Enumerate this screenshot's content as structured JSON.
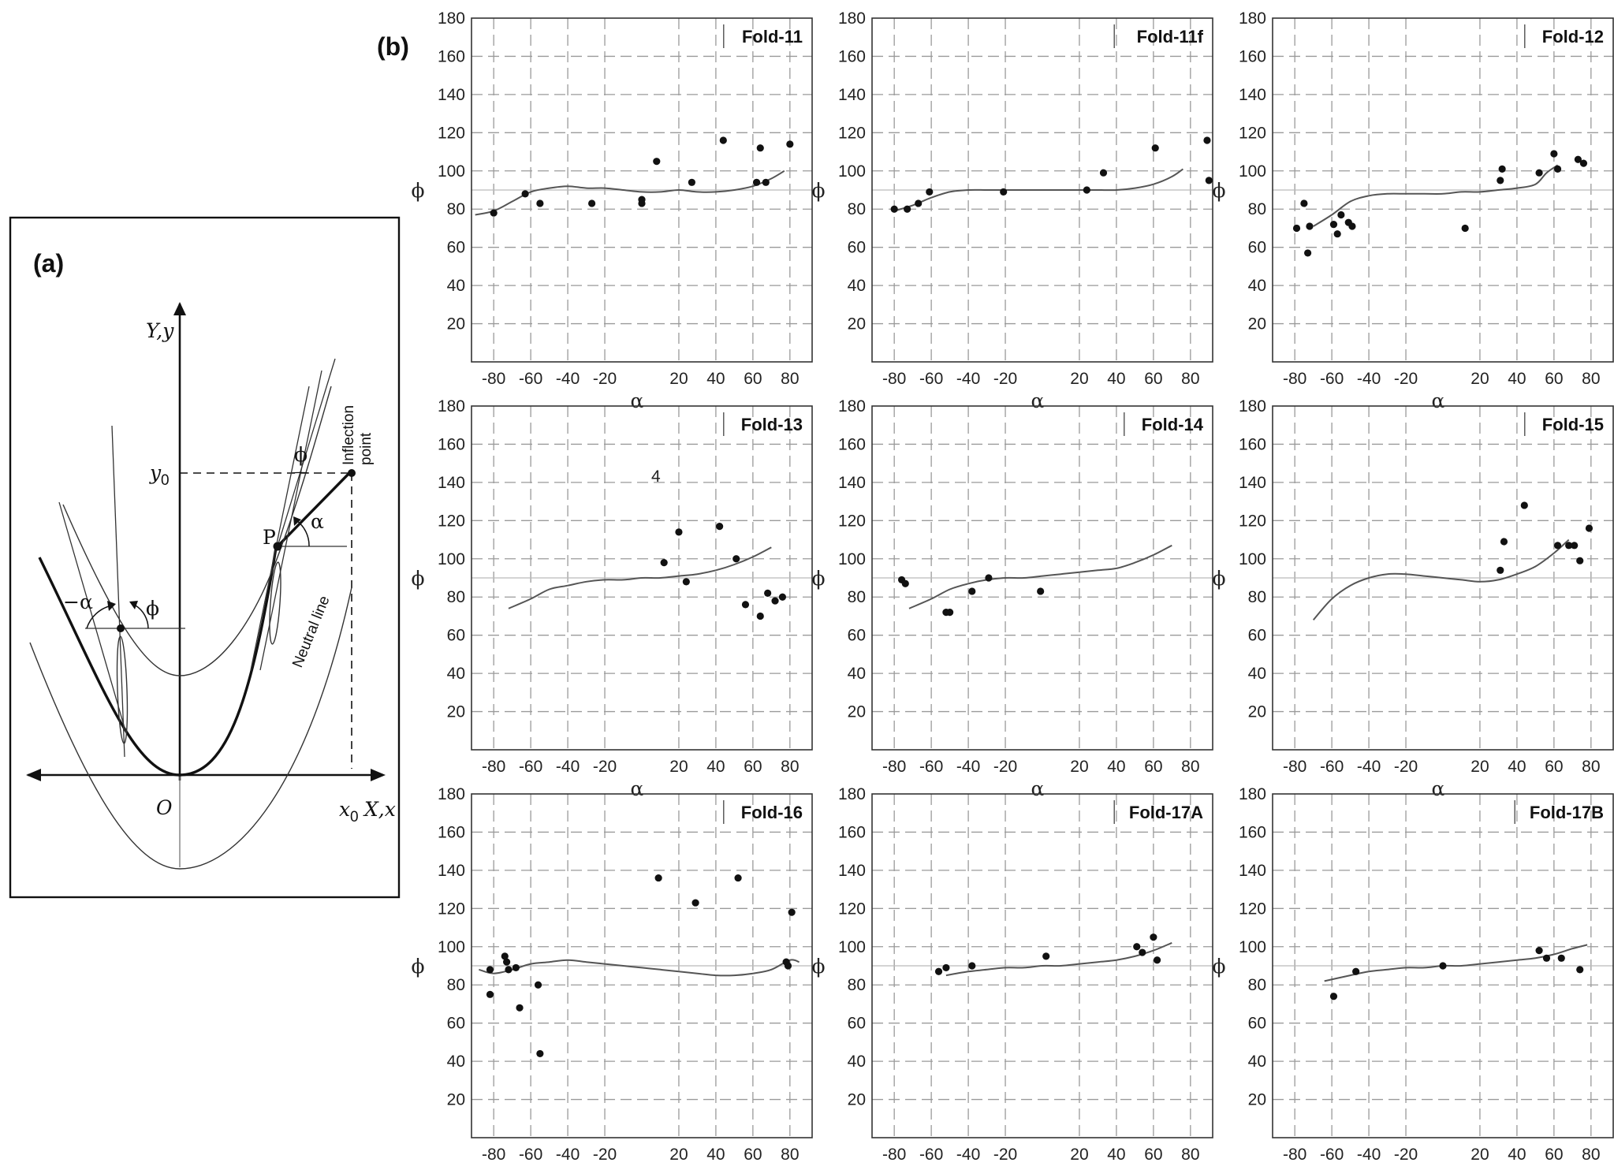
{
  "panel_a": {
    "label": "(a)",
    "axis_y": "Y,y",
    "axis_x": "X,x",
    "origin": "O",
    "x0": "x",
    "x0_sub": "0",
    "y0": "y",
    "y0_sub": "0",
    "point_p": "P",
    "alpha": "α",
    "neg_alpha": "−α",
    "phi": "ϕ",
    "phi_right": "ϕ",
    "inflection_1": "Inflection",
    "inflection_2": "point",
    "neutral_line": "Neutral line"
  },
  "panel_b_label": "(b)",
  "annotations": {
    "stray_text": "4"
  },
  "chart_data": [
    {
      "type": "scatter",
      "title": "Fold-11",
      "xlabel": "α",
      "ylabel": "ϕ",
      "xlim": [
        -92,
        92
      ],
      "ylim": [
        0,
        180
      ],
      "xticks": [
        -80,
        -60,
        -40,
        -20,
        20,
        40,
        60,
        80
      ],
      "yticks": [
        20,
        40,
        60,
        80,
        100,
        120,
        140,
        160,
        180
      ],
      "points": [
        [
          -80,
          78
        ],
        [
          -63,
          88
        ],
        [
          -55,
          83
        ],
        [
          -27,
          83
        ],
        [
          0,
          85
        ],
        [
          0,
          83
        ],
        [
          8,
          105
        ],
        [
          27,
          94
        ],
        [
          44,
          116
        ],
        [
          62,
          94
        ],
        [
          64,
          112
        ],
        [
          67,
          94
        ],
        [
          80,
          114
        ]
      ],
      "fit": [
        [
          -90,
          77
        ],
        [
          -80,
          79
        ],
        [
          -70,
          84
        ],
        [
          -60,
          89
        ],
        [
          -50,
          91
        ],
        [
          -40,
          92
        ],
        [
          -30,
          91
        ],
        [
          -20,
          91
        ],
        [
          -10,
          90
        ],
        [
          0,
          89
        ],
        [
          10,
          89
        ],
        [
          20,
          90
        ],
        [
          30,
          89
        ],
        [
          40,
          89
        ],
        [
          50,
          90
        ],
        [
          60,
          92
        ],
        [
          70,
          96
        ],
        [
          77,
          100
        ]
      ]
    },
    {
      "type": "scatter",
      "title": "Fold-11f",
      "xlabel": "α",
      "ylabel": "ϕ",
      "xlim": [
        -92,
        92
      ],
      "ylim": [
        0,
        180
      ],
      "xticks": [
        -80,
        -60,
        -40,
        -20,
        20,
        40,
        60,
        80
      ],
      "yticks": [
        20,
        40,
        60,
        80,
        100,
        120,
        140,
        160,
        180
      ],
      "points": [
        [
          -80,
          80
        ],
        [
          -73,
          80
        ],
        [
          -67,
          83
        ],
        [
          -61,
          89
        ],
        [
          -21,
          89
        ],
        [
          24,
          90
        ],
        [
          33,
          99
        ],
        [
          61,
          112
        ],
        [
          89,
          116
        ],
        [
          90,
          95
        ]
      ],
      "fit": [
        [
          -80,
          79
        ],
        [
          -70,
          82
        ],
        [
          -60,
          86
        ],
        [
          -50,
          89
        ],
        [
          -40,
          90
        ],
        [
          -30,
          90
        ],
        [
          -20,
          90
        ],
        [
          -10,
          90
        ],
        [
          0,
          90
        ],
        [
          10,
          90
        ],
        [
          20,
          90
        ],
        [
          30,
          90
        ],
        [
          40,
          90
        ],
        [
          50,
          91
        ],
        [
          60,
          93
        ],
        [
          70,
          97
        ],
        [
          76,
          101
        ]
      ]
    },
    {
      "type": "scatter",
      "title": "Fold-12",
      "xlabel": "α",
      "ylabel": "ϕ",
      "xlim": [
        -92,
        92
      ],
      "ylim": [
        0,
        180
      ],
      "xticks": [
        -80,
        -60,
        -40,
        -20,
        20,
        40,
        60,
        80
      ],
      "yticks": [
        20,
        40,
        60,
        80,
        100,
        120,
        140,
        160,
        180
      ],
      "points": [
        [
          -79,
          70
        ],
        [
          -75,
          83
        ],
        [
          -73,
          57
        ],
        [
          -72,
          71
        ],
        [
          -59,
          72
        ],
        [
          -57,
          67
        ],
        [
          -55,
          77
        ],
        [
          -51,
          73
        ],
        [
          -49,
          71
        ],
        [
          12,
          70
        ],
        [
          31,
          95
        ],
        [
          32,
          101
        ],
        [
          52,
          99
        ],
        [
          60,
          109
        ],
        [
          62,
          101
        ],
        [
          73,
          106
        ],
        [
          76,
          104
        ]
      ],
      "fit": [
        [
          -70,
          71
        ],
        [
          -60,
          77
        ],
        [
          -50,
          84
        ],
        [
          -40,
          87
        ],
        [
          -30,
          88
        ],
        [
          -20,
          88
        ],
        [
          -10,
          88
        ],
        [
          0,
          88
        ],
        [
          10,
          89
        ],
        [
          20,
          89
        ],
        [
          30,
          90
        ],
        [
          40,
          91
        ],
        [
          50,
          93
        ],
        [
          56,
          99
        ],
        [
          62,
          103
        ]
      ]
    },
    {
      "type": "scatter",
      "title": "Fold-13",
      "xlabel": "α",
      "ylabel": "ϕ",
      "xlim": [
        -92,
        92
      ],
      "ylim": [
        0,
        180
      ],
      "xticks": [
        -80,
        -60,
        -40,
        -20,
        20,
        40,
        60,
        80
      ],
      "yticks": [
        20,
        40,
        60,
        80,
        100,
        120,
        140,
        160,
        180
      ],
      "points": [
        [
          12,
          98
        ],
        [
          20,
          114
        ],
        [
          24,
          88
        ],
        [
          42,
          117
        ],
        [
          51,
          100
        ],
        [
          56,
          76
        ],
        [
          64,
          70
        ],
        [
          68,
          82
        ],
        [
          72,
          78
        ],
        [
          76,
          80
        ]
      ],
      "fit": [
        [
          -72,
          74
        ],
        [
          -60,
          79
        ],
        [
          -50,
          84
        ],
        [
          -40,
          86
        ],
        [
          -30,
          88
        ],
        [
          -20,
          89
        ],
        [
          -10,
          89
        ],
        [
          0,
          90
        ],
        [
          10,
          90
        ],
        [
          20,
          91
        ],
        [
          30,
          92
        ],
        [
          40,
          94
        ],
        [
          50,
          97
        ],
        [
          60,
          101
        ],
        [
          70,
          106
        ]
      ]
    },
    {
      "type": "scatter",
      "title": "Fold-14",
      "xlabel": "α",
      "ylabel": "ϕ",
      "xlim": [
        -92,
        92
      ],
      "ylim": [
        0,
        180
      ],
      "xticks": [
        -80,
        -60,
        -40,
        -20,
        20,
        40,
        60,
        80
      ],
      "yticks": [
        20,
        40,
        60,
        80,
        100,
        120,
        140,
        160,
        180
      ],
      "points": [
        [
          -76,
          89
        ],
        [
          -74,
          87
        ],
        [
          -52,
          72
        ],
        [
          -50,
          72
        ],
        [
          -38,
          83
        ],
        [
          -29,
          90
        ],
        [
          -1,
          83
        ]
      ],
      "fit": [
        [
          -72,
          74
        ],
        [
          -60,
          79
        ],
        [
          -50,
          84
        ],
        [
          -40,
          87
        ],
        [
          -30,
          89
        ],
        [
          -20,
          90
        ],
        [
          -10,
          90
        ],
        [
          0,
          91
        ],
        [
          10,
          92
        ],
        [
          20,
          93
        ],
        [
          30,
          94
        ],
        [
          40,
          95
        ],
        [
          50,
          98
        ],
        [
          60,
          102
        ],
        [
          70,
          107
        ]
      ]
    },
    {
      "type": "scatter",
      "title": "Fold-15",
      "xlabel": "α",
      "ylabel": "ϕ",
      "xlim": [
        -92,
        92
      ],
      "ylim": [
        0,
        180
      ],
      "xticks": [
        -80,
        -60,
        -40,
        -20,
        20,
        40,
        60,
        80
      ],
      "yticks": [
        20,
        40,
        60,
        80,
        100,
        120,
        140,
        160,
        180
      ],
      "points": [
        [
          31,
          94
        ],
        [
          33,
          109
        ],
        [
          44,
          128
        ],
        [
          62,
          107
        ],
        [
          68,
          107
        ],
        [
          71,
          107
        ],
        [
          74,
          99
        ],
        [
          79,
          116
        ]
      ],
      "fit": [
        [
          -70,
          68
        ],
        [
          -60,
          79
        ],
        [
          -50,
          86
        ],
        [
          -40,
          90
        ],
        [
          -30,
          92
        ],
        [
          -20,
          92
        ],
        [
          -10,
          91
        ],
        [
          0,
          90
        ],
        [
          10,
          89
        ],
        [
          20,
          88
        ],
        [
          30,
          89
        ],
        [
          40,
          92
        ],
        [
          50,
          96
        ],
        [
          60,
          103
        ],
        [
          68,
          110
        ]
      ]
    },
    {
      "type": "scatter",
      "title": "Fold-16",
      "xlabel": "α",
      "ylabel": "ϕ",
      "xlim": [
        -92,
        92
      ],
      "ylim": [
        0,
        180
      ],
      "xticks": [
        -80,
        -60,
        -40,
        -20,
        20,
        40,
        60,
        80
      ],
      "yticks": [
        20,
        40,
        60,
        80,
        100,
        120,
        140,
        160,
        180
      ],
      "points": [
        [
          -82,
          88
        ],
        [
          -82,
          75
        ],
        [
          -74,
          95
        ],
        [
          -73,
          92
        ],
        [
          -72,
          88
        ],
        [
          -68,
          89
        ],
        [
          -66,
          68
        ],
        [
          -56,
          80
        ],
        [
          -55,
          44
        ],
        [
          9,
          136
        ],
        [
          29,
          123
        ],
        [
          52,
          136
        ],
        [
          78,
          92
        ],
        [
          79,
          90
        ],
        [
          81,
          118
        ]
      ],
      "fit": [
        [
          -88,
          88
        ],
        [
          -80,
          86
        ],
        [
          -70,
          88
        ],
        [
          -60,
          91
        ],
        [
          -50,
          92
        ],
        [
          -40,
          93
        ],
        [
          -30,
          92
        ],
        [
          -20,
          91
        ],
        [
          -10,
          90
        ],
        [
          0,
          89
        ],
        [
          10,
          88
        ],
        [
          20,
          87
        ],
        [
          30,
          86
        ],
        [
          40,
          85
        ],
        [
          50,
          85
        ],
        [
          60,
          86
        ],
        [
          70,
          88
        ],
        [
          80,
          93
        ],
        [
          85,
          92
        ]
      ]
    },
    {
      "type": "scatter",
      "title": "Fold-17A",
      "xlabel": "α",
      "ylabel": "ϕ",
      "xlim": [
        -92,
        92
      ],
      "ylim": [
        0,
        180
      ],
      "xticks": [
        -80,
        -60,
        -40,
        -20,
        20,
        40,
        60,
        80
      ],
      "yticks": [
        20,
        40,
        60,
        80,
        100,
        120,
        140,
        160,
        180
      ],
      "points": [
        [
          -56,
          87
        ],
        [
          -52,
          89
        ],
        [
          -38,
          90
        ],
        [
          2,
          95
        ],
        [
          51,
          100
        ],
        [
          54,
          97
        ],
        [
          60,
          105
        ],
        [
          62,
          93
        ]
      ],
      "fit": [
        [
          -52,
          85
        ],
        [
          -40,
          87
        ],
        [
          -30,
          88
        ],
        [
          -20,
          89
        ],
        [
          -10,
          89
        ],
        [
          0,
          90
        ],
        [
          10,
          90
        ],
        [
          20,
          91
        ],
        [
          30,
          92
        ],
        [
          40,
          93
        ],
        [
          50,
          95
        ],
        [
          60,
          98
        ],
        [
          70,
          102
        ]
      ]
    },
    {
      "type": "scatter",
      "title": "Fold-17B",
      "xlabel": "α",
      "ylabel": "ϕ",
      "xlim": [
        -92,
        92
      ],
      "ylim": [
        0,
        180
      ],
      "xticks": [
        -80,
        -60,
        -40,
        -20,
        20,
        40,
        60,
        80
      ],
      "yticks": [
        20,
        40,
        60,
        80,
        100,
        120,
        140,
        160,
        180
      ],
      "points": [
        [
          -59,
          74
        ],
        [
          -47,
          87
        ],
        [
          0,
          90
        ],
        [
          52,
          98
        ],
        [
          56,
          94
        ],
        [
          64,
          94
        ],
        [
          74,
          88
        ]
      ],
      "fit": [
        [
          -64,
          82
        ],
        [
          -50,
          85
        ],
        [
          -40,
          87
        ],
        [
          -30,
          88
        ],
        [
          -20,
          89
        ],
        [
          -10,
          89
        ],
        [
          0,
          90
        ],
        [
          10,
          90
        ],
        [
          20,
          91
        ],
        [
          30,
          92
        ],
        [
          40,
          93
        ],
        [
          50,
          94
        ],
        [
          60,
          96
        ],
        [
          70,
          99
        ],
        [
          78,
          101
        ]
      ]
    }
  ]
}
